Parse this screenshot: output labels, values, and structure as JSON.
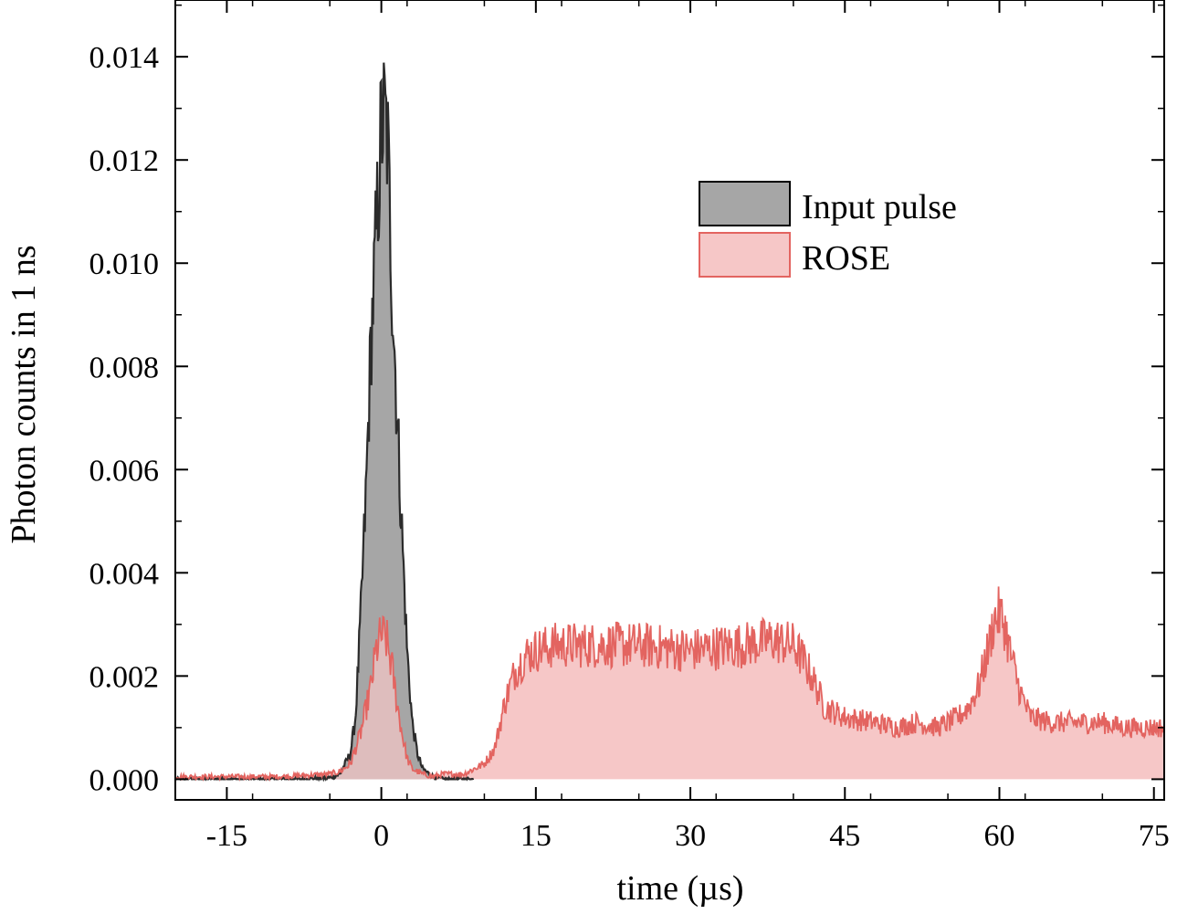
{
  "chart_data": {
    "type": "area",
    "title": "",
    "xlabel": "time (µs)",
    "ylabel": "Photon counts in 1 ns",
    "xlim": [
      -20,
      76
    ],
    "ylim": [
      -0.0004,
      0.0151
    ],
    "xticks": [
      -15,
      0,
      15,
      30,
      45,
      60,
      75
    ],
    "xtick_labels": [
      "-15",
      "0",
      "15",
      "30",
      "45",
      "60",
      "75"
    ],
    "yticks": [
      0.0,
      0.002,
      0.004,
      0.006,
      0.008,
      0.01,
      0.012,
      0.014
    ],
    "ytick_labels": [
      "0.000",
      "0.002",
      "0.004",
      "0.006",
      "0.008",
      "0.010",
      "0.012",
      "0.014"
    ],
    "legend_position": "upper-right",
    "series": [
      {
        "name": "Input pulse",
        "color": "#2b2b2b",
        "fill": "#a6a6a6",
        "x": [
          -20,
          -8,
          -5,
          -4,
          -3,
          -2.5,
          -2,
          -1.5,
          -1,
          -0.5,
          0,
          0.3,
          0.6,
          1,
          1.5,
          2,
          2.5,
          3,
          3.5,
          4,
          5,
          6,
          9
        ],
        "y": [
          0.0,
          0.0,
          3e-05,
          0.0001,
          0.0005,
          0.0012,
          0.0032,
          0.0055,
          0.0085,
          0.0105,
          0.0126,
          0.0128,
          0.0124,
          0.0098,
          0.0072,
          0.0048,
          0.0025,
          0.0011,
          0.0005,
          0.0002,
          5e-05,
          0.0,
          0.0
        ]
      },
      {
        "name": "ROSE",
        "color": "#e36460",
        "fill": "#f6c7c7",
        "x": [
          -20,
          -15,
          -10,
          -5,
          -4,
          -3,
          -2,
          -1,
          -0.5,
          0,
          0.5,
          1,
          1.5,
          2,
          2.5,
          3,
          4,
          5,
          6,
          8,
          10,
          11,
          12,
          13,
          14,
          15,
          17,
          20,
          25,
          30,
          35,
          38,
          40,
          41,
          42,
          43,
          45,
          48,
          50,
          52,
          54,
          56,
          57,
          58,
          59,
          59.5,
          60,
          60.5,
          61,
          62,
          63,
          65,
          68,
          70,
          72,
          75,
          76
        ],
        "y": [
          5e-05,
          5e-05,
          5e-05,
          0.0001,
          0.00015,
          0.0003,
          0.0009,
          0.0018,
          0.0025,
          0.0028,
          0.0027,
          0.0022,
          0.0015,
          0.0009,
          0.0004,
          0.0002,
          0.0001,
          5e-05,
          0.0001,
          0.0001,
          0.0003,
          0.0006,
          0.0015,
          0.0021,
          0.0024,
          0.0025,
          0.0026,
          0.0026,
          0.0026,
          0.0025,
          0.0026,
          0.0027,
          0.0026,
          0.0023,
          0.0019,
          0.0014,
          0.0012,
          0.0011,
          0.001,
          0.0011,
          0.001,
          0.0012,
          0.0014,
          0.0018,
          0.0026,
          0.0031,
          0.0032,
          0.003,
          0.0025,
          0.0017,
          0.0012,
          0.0011,
          0.0011,
          0.0011,
          0.001,
          0.001,
          0.001
        ]
      }
    ]
  }
}
